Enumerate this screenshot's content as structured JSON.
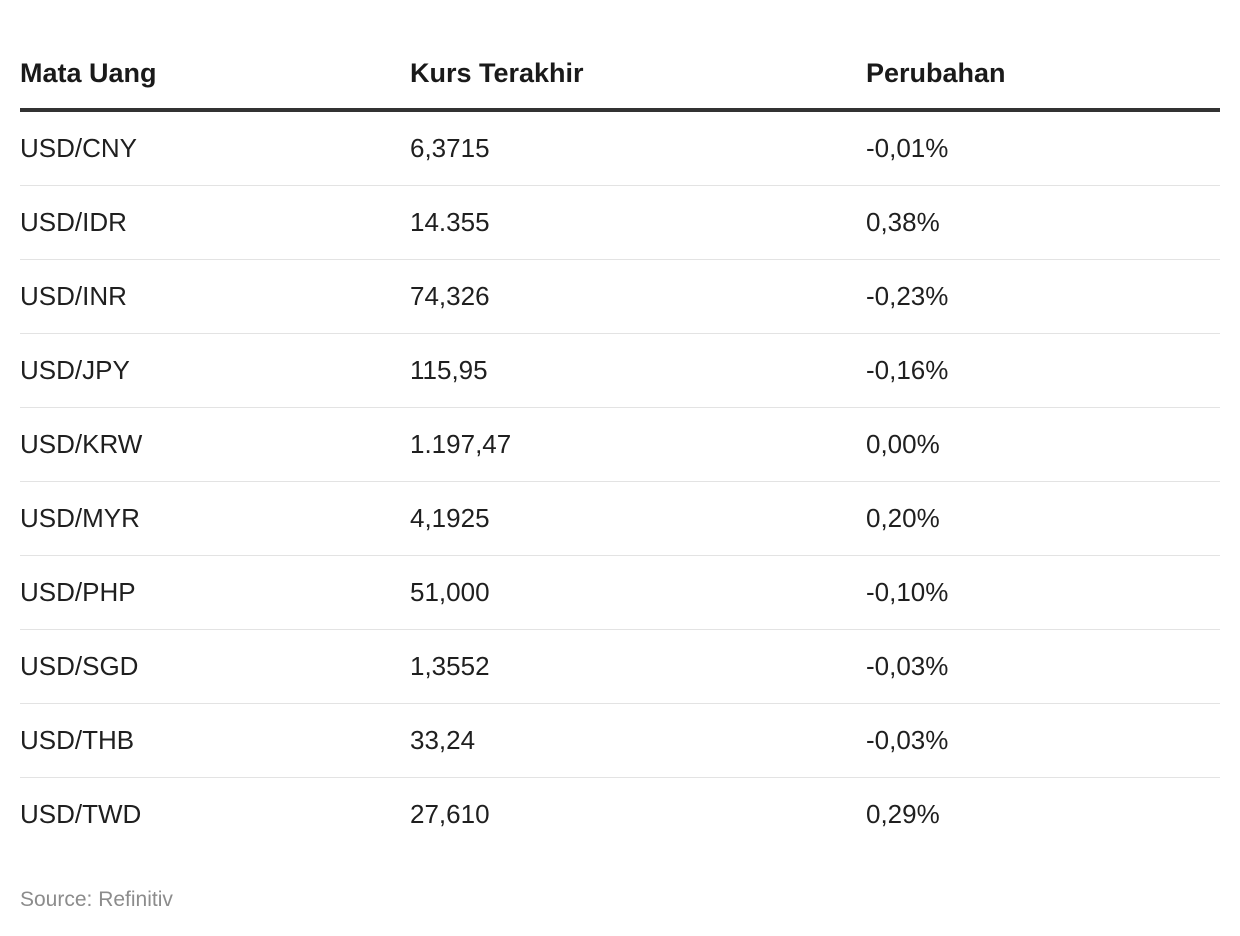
{
  "chart_data": {
    "type": "table",
    "columns": [
      "Mata Uang",
      "Kurs Terakhir",
      "Perubahan"
    ],
    "rows": [
      [
        "USD/CNY",
        "6,3715",
        "-0,01%"
      ],
      [
        "USD/IDR",
        "14.355",
        "0,38%"
      ],
      [
        "USD/INR",
        "74,326",
        "-0,23%"
      ],
      [
        "USD/JPY",
        "115,95",
        "-0,16%"
      ],
      [
        "USD/KRW",
        "1.197,47",
        "0,00%"
      ],
      [
        "USD/MYR",
        "4,1925",
        "0,20%"
      ],
      [
        "USD/PHP",
        "51,000",
        "-0,10%"
      ],
      [
        "USD/SGD",
        "1,3552",
        "-0,03%"
      ],
      [
        "USD/THB",
        "33,24",
        "-0,03%"
      ],
      [
        "USD/TWD",
        "27,610",
        "0,29%"
      ]
    ],
    "source": "Source: Refinitiv"
  }
}
